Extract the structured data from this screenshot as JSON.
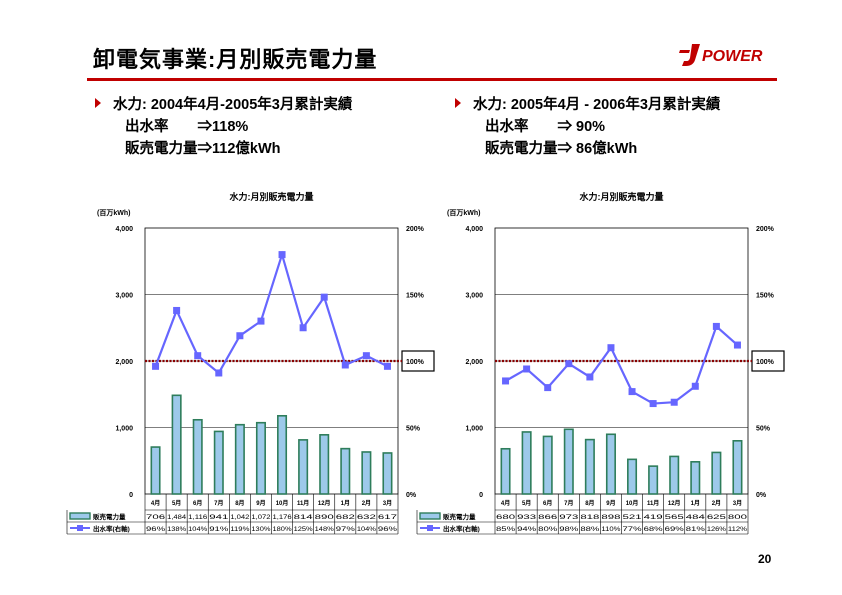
{
  "slide": {
    "title": "卸電気事業:月別販売電力量",
    "page_number": "20",
    "logo_text": "POWER",
    "accent_color": "#c00000"
  },
  "left_text": {
    "line1": "水力: 2004年4月-2005年3月累計実績",
    "line2": "出水率　　⇒118%",
    "line3": "販売電力量⇒112億kWh"
  },
  "right_text": {
    "line1": "水力: 2005年4月 - 2006年3月累計実績",
    "line2": "出水率　　⇒ 90%",
    "line3": "販売電力量⇒ 86億kWh"
  },
  "chart_data": [
    {
      "type": "bar",
      "title": "水力:月別販売電力量",
      "unit_label": "(百万kWh)",
      "categories": [
        "4月",
        "5月",
        "6月",
        "7月",
        "8月",
        "9月",
        "10月",
        "11月",
        "12月",
        "1月",
        "2月",
        "3月"
      ],
      "y_ticks": [
        "0",
        "1,000",
        "2,000",
        "3,000",
        "4,000"
      ],
      "y2_ticks": [
        "0%",
        "50%",
        "100%",
        "150%",
        "200%"
      ],
      "ylim": [
        0,
        4000
      ],
      "y2lim": [
        0,
        200
      ],
      "reference_line": 100,
      "reference_label": "100%",
      "series": [
        {
          "name": "販売電力量",
          "kind": "bar",
          "axis": "left",
          "values": [
            706,
            1484,
            1116,
            941,
            1042,
            1072,
            1176,
            814,
            890,
            682,
            632,
            617
          ],
          "labels": [
            "706",
            "1,484",
            "1,116",
            "941",
            "1,042",
            "1,072",
            "1,176",
            "814",
            "890",
            "682",
            "632",
            "617"
          ]
        },
        {
          "name": "出水率(右軸)",
          "kind": "line",
          "axis": "right",
          "values": [
            96,
            138,
            104,
            91,
            119,
            130,
            180,
            125,
            148,
            97,
            104,
            96
          ],
          "labels": [
            "96%",
            "138%",
            "104%",
            "91%",
            "119%",
            "130%",
            "180%",
            "125%",
            "148%",
            "97%",
            "104%",
            "96%"
          ]
        }
      ],
      "colors": {
        "bar_fill": "#9dc9ea",
        "bar_stroke": "#2e7d5b",
        "line": "#6666ff",
        "reference": "#8b0000"
      }
    },
    {
      "type": "bar",
      "title": "水力:月別販売電力量",
      "unit_label": "(百万kWh)",
      "categories": [
        "4月",
        "5月",
        "6月",
        "7月",
        "8月",
        "9月",
        "10月",
        "11月",
        "12月",
        "1月",
        "2月",
        "3月"
      ],
      "y_ticks": [
        "0",
        "1,000",
        "2,000",
        "3,000",
        "4,000"
      ],
      "y2_ticks": [
        "0%",
        "50%",
        "100%",
        "150%",
        "200%"
      ],
      "ylim": [
        0,
        4000
      ],
      "y2lim": [
        0,
        200
      ],
      "reference_line": 100,
      "reference_label": "100%",
      "series": [
        {
          "name": "販売電力量",
          "kind": "bar",
          "axis": "left",
          "values": [
            680,
            933,
            866,
            973,
            818,
            898,
            521,
            419,
            565,
            484,
            625,
            800
          ],
          "labels": [
            "680",
            "933",
            "866",
            "973",
            "818",
            "898",
            "521",
            "419",
            "565",
            "484",
            "625",
            "800"
          ]
        },
        {
          "name": "出水率(右軸)",
          "kind": "line",
          "axis": "right",
          "values": [
            85,
            94,
            80,
            98,
            88,
            110,
            77,
            68,
            69,
            81,
            126,
            112
          ],
          "labels": [
            "85%",
            "94%",
            "80%",
            "98%",
            "88%",
            "110%",
            "77%",
            "68%",
            "69%",
            "81%",
            "126%",
            "112%"
          ]
        }
      ],
      "colors": {
        "bar_fill": "#9dc9ea",
        "bar_stroke": "#2e7d5b",
        "line": "#6666ff",
        "reference": "#8b0000"
      }
    }
  ]
}
